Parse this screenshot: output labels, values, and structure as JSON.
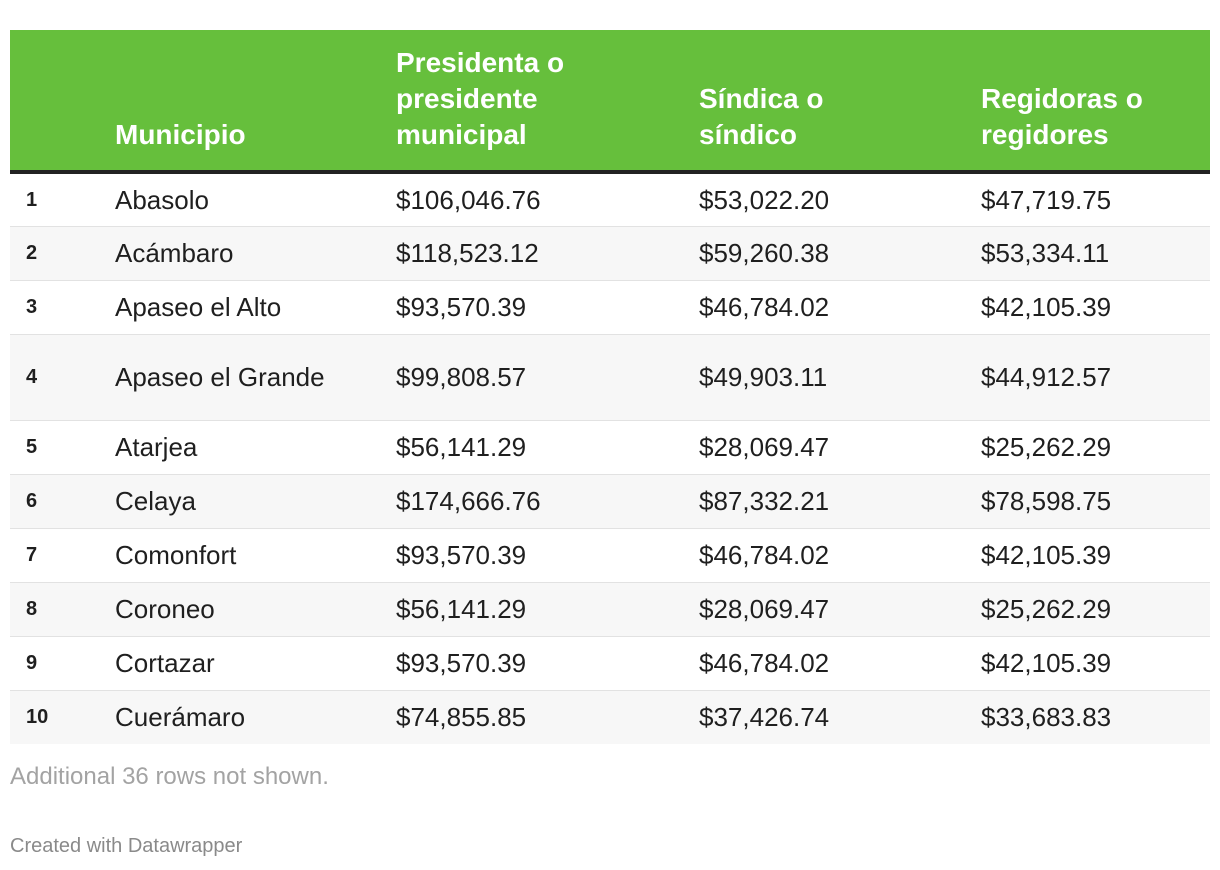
{
  "chart_data": {
    "type": "table",
    "columns": [
      "",
      "Municipio",
      "Presidenta o\npresidente\nmunicipal",
      "Síndica o\nsíndico",
      "Regidoras o\nregidores"
    ],
    "rows": [
      {
        "rank": "1",
        "municipio": "Abasolo",
        "presidente": "$106,046.76",
        "sindico": "$53,022.20",
        "regidores": "$47,719.75"
      },
      {
        "rank": "2",
        "municipio": "Acámbaro",
        "presidente": "$118,523.12",
        "sindico": "$59,260.38",
        "regidores": "$53,334.11"
      },
      {
        "rank": "3",
        "municipio": "Apaseo el Alto",
        "presidente": "$93,570.39",
        "sindico": "$46,784.02",
        "regidores": "$42,105.39"
      },
      {
        "rank": "4",
        "municipio": "Apaseo el Grande",
        "presidente": "$99,808.57",
        "sindico": "$49,903.11",
        "regidores": "$44,912.57"
      },
      {
        "rank": "5",
        "municipio": "Atarjea",
        "presidente": "$56,141.29",
        "sindico": "$28,069.47",
        "regidores": "$25,262.29"
      },
      {
        "rank": "6",
        "municipio": "Celaya",
        "presidente": "$174,666.76",
        "sindico": "$87,332.21",
        "regidores": "$78,598.75"
      },
      {
        "rank": "7",
        "municipio": "Comonfort",
        "presidente": "$93,570.39",
        "sindico": "$46,784.02",
        "regidores": "$42,105.39"
      },
      {
        "rank": "8",
        "municipio": "Coroneo",
        "presidente": "$56,141.29",
        "sindico": "$28,069.47",
        "regidores": "$25,262.29"
      },
      {
        "rank": "9",
        "municipio": "Cortazar",
        "presidente": "$93,570.39",
        "sindico": "$46,784.02",
        "regidores": "$42,105.39"
      },
      {
        "rank": "10",
        "municipio": "Cuerámaro",
        "presidente": "$74,855.85",
        "sindico": "$37,426.74",
        "regidores": "$33,683.83"
      }
    ]
  },
  "notes": "Additional 36 rows not shown.",
  "footer": "Created with Datawrapper",
  "colors": {
    "header_bg": "#66bf3c",
    "header_text": "#ffffff",
    "stripe": "#f7f7f7"
  }
}
